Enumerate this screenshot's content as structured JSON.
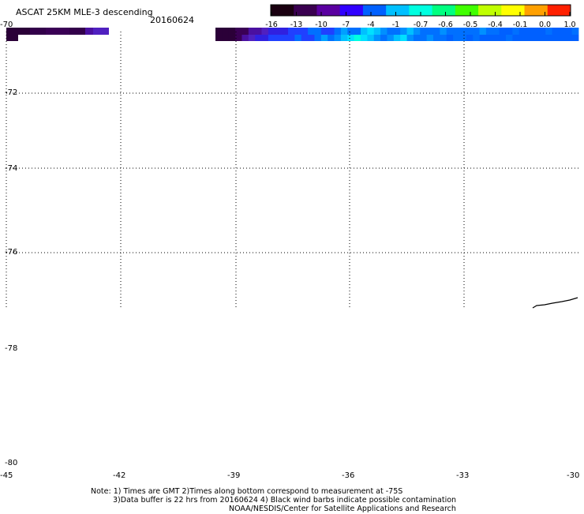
{
  "title": "ASCAT 25KM MLE-3 descending",
  "date": "20160624",
  "colorbar": {
    "ticks": [
      "-16",
      "-13",
      "-10",
      "-7",
      "-4",
      "-1",
      "-0.7",
      "-0.6",
      "-0.5",
      "-0.4",
      "-0.1",
      "0.0",
      "1.0"
    ],
    "colors": [
      "#1a0010",
      "#3a0050",
      "#5a00a0",
      "#3000ff",
      "#0060ff",
      "#00c0ff",
      "#00ffe0",
      "#00ff80",
      "#40ff00",
      "#c0ff00",
      "#ffff00",
      "#ffa000",
      "#ff2000"
    ]
  },
  "lat_labels": [
    "-70",
    "-72",
    "-74",
    "-76",
    "-78",
    "-80"
  ],
  "lon_labels": [
    "-45",
    "-42",
    "-39",
    "-36",
    "-33",
    "-30"
  ],
  "notes": {
    "line1": "Note: 1) Times are GMT 2)Times along bottom correspond to measurement at -75S",
    "line2": "3)Data buffer is 22 hrs from 20160624 4) Black wind barbs indicate possible contamination",
    "line3": "NOAA/NESDIS/Center for Satellite Applications and Research"
  }
}
